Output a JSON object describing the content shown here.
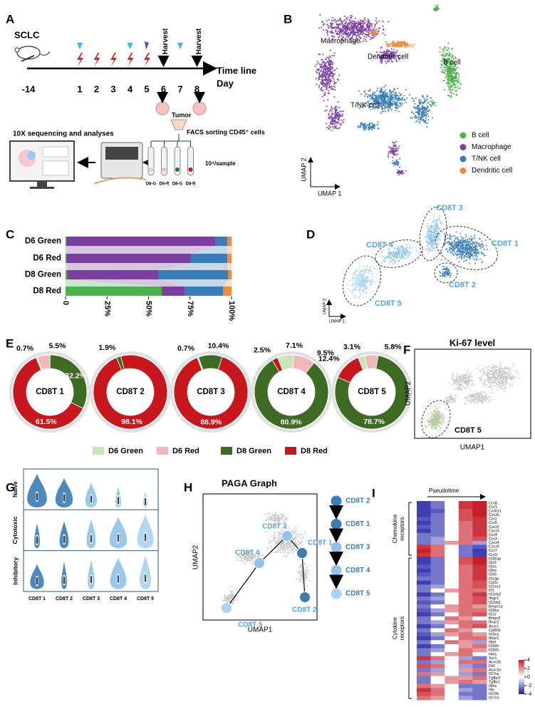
{
  "panel_labels": [
    "A",
    "B",
    "C",
    "D",
    "E",
    "F",
    "G",
    "H",
    "I"
  ],
  "a": {
    "model": "SCLC",
    "days": [
      "-14",
      "1",
      "2",
      "3",
      "4",
      "5",
      "6",
      "7",
      "8"
    ],
    "harvest": "Harvest",
    "timeline": "Time line",
    "day": "Day",
    "tumor": "Tumor",
    "facs": "FACS sorting CD45⁺ cells",
    "sequencing": "10X sequencing and analyses",
    "per_sample": "10⁴/sample",
    "samples": [
      "D6-G",
      "D6-R",
      "D8-G",
      "D8-R"
    ]
  },
  "b": {
    "umap_x": "UMAP 1",
    "umap_y": "UMAP 2",
    "clusters": [
      {
        "name": "B cell",
        "color": "#4caf50"
      },
      {
        "name": "Macrophage",
        "color": "#7b3fa0"
      },
      {
        "name": "T/NK cell",
        "color": "#3a7db5"
      },
      {
        "name": "Dendritic cell",
        "color": "#f08a3c"
      }
    ]
  },
  "c": {
    "type": "bar",
    "orientation": "horizontal",
    "stacked": true,
    "categories": [
      "D6 Green",
      "D6 Red",
      "D8 Green",
      "D8 Red"
    ],
    "series": [
      {
        "name": "B cell",
        "color": "#4caf50",
        "values": [
          0.5,
          0.5,
          1,
          58
        ]
      },
      {
        "name": "Macrophage",
        "color": "#7b3fa0",
        "values": [
          90,
          75,
          55,
          14
        ]
      },
      {
        "name": "T/NK cell",
        "color": "#3a7db5",
        "values": [
          7,
          22,
          42,
          23
        ]
      },
      {
        "name": "Dendritic cell",
        "color": "#f08a3c",
        "values": [
          2.5,
          2.5,
          2,
          5
        ]
      }
    ],
    "xlim": [
      0,
      100
    ],
    "xticks": [
      0,
      {
        "value": 25,
        "label": "25%"
      },
      {
        "value": 50,
        "label": "50%"
      },
      {
        "value": 75,
        "label": "75%"
      },
      {
        "value": 100,
        "label": "100%"
      }
    ]
  },
  "d": {
    "umap_x": "UMAP 1",
    "umap_y": "UMAP 2",
    "clusters": [
      {
        "name": "CD8T 1",
        "color": "#3a7db5"
      },
      {
        "name": "CD8T 2",
        "color": "#3a7db5"
      },
      {
        "name": "CD8T 3",
        "color": "#8fc3ec"
      },
      {
        "name": "CD8T 4",
        "color": "#8fc3ec"
      },
      {
        "name": "CD8T 5",
        "color": "#a9d3f2"
      }
    ]
  },
  "e": {
    "type": "donut",
    "series": [
      {
        "name": "D6 Green",
        "color": "#c7e6b5"
      },
      {
        "name": "D6 Red",
        "color": "#f4b6bd"
      },
      {
        "name": "D8 Green",
        "color": "#3d6b24"
      },
      {
        "name": "D8 Red",
        "color": "#c8161d"
      }
    ],
    "charts": [
      {
        "label": "CD8T 1",
        "values": [
          0.7,
          5.5,
          32.2,
          61.5
        ],
        "value_labels": [
          "0.7%",
          "5.5%",
          "32.2%",
          "61.5%"
        ]
      },
      {
        "label": "CD8T 2",
        "values": [
          null,
          null,
          1.9,
          98.1
        ],
        "value_labels": [
          null,
          null,
          "1.9%",
          "98.1%"
        ]
      },
      {
        "label": "CD8T 3",
        "values": [
          0.7,
          null,
          10.4,
          88.9
        ],
        "value_labels": [
          "0.7%",
          null,
          "10.4%",
          "88.9%"
        ]
      },
      {
        "label": "CD8T 4",
        "values": [
          7.1,
          9.5,
          80.9,
          2.5
        ],
        "value_labels": [
          "7.1%",
          "9.5%",
          "80.9%",
          "2.5%"
        ]
      },
      {
        "label": "CD8T 5",
        "values": [
          3.1,
          5.8,
          78.7,
          12.4
        ],
        "value_labels": [
          "3.1%",
          "5.8%",
          "78.7%",
          "12.4%"
        ]
      }
    ]
  },
  "f": {
    "title": "Ki-67 level",
    "umap_x": "UMAP1",
    "umap_y": "UMAP2",
    "cluster": "CD8T 5"
  },
  "g": {
    "rows": [
      "Naive",
      "Cytotoxic",
      "Inhibitory"
    ],
    "categories": [
      "CD8T 1",
      "CD8T 2",
      "CD8T 3",
      "CD8T 4",
      "CD8T 5"
    ]
  },
  "h": {
    "title": "PAGA Graph",
    "umap_x": "UMAP1",
    "umap_y": "UMAP2",
    "nodes": [
      "CD8T 1",
      "CD8T 2",
      "CD8T 3",
      "CD8T 4",
      "CD8T 5"
    ],
    "order": [
      "CD8T 2",
      "CD8T 1",
      "CD8T 3",
      "CD8T 4",
      "CD8T 5"
    ]
  },
  "i": {
    "type": "heatmap",
    "axis": "Pseudotime",
    "groups": [
      [
        "Chemokine",
        "receptors"
      ],
      [
        "Cytokine",
        "receptors"
      ]
    ],
    "genes": [
      "Ccr8",
      "Ccr1",
      "Cx3cr1",
      "Cxcr6",
      "Ccr2",
      "Ccr5",
      "Cxcr2",
      "Cxcr3",
      "Ccr4",
      "Ccr3",
      "Cxcr4",
      "Cxcr5",
      "Ccr7",
      "Ccr9",
      "Il18rap",
      "Il1r2",
      "Il2ra",
      "Il3ra",
      "Il2rb",
      "Il1rap",
      "Csf1r",
      "Il11ra1",
      "Il7r",
      "Il12rb2",
      "Ifngr1",
      "Il12rb1",
      "Bmpr1a",
      "Il10ra",
      "Il21r",
      "Bmpr2",
      "Ifnar2",
      "Acvr1",
      "Csf2rb",
      "Il15ra",
      "Ifnar1",
      "Il6st",
      "Il10rb",
      "Il20rb",
      "Il4ra",
      "Xcr1",
      "Acvr2b",
      "Flt1",
      "Acvr1b",
      "Il27ra",
      "Tgfbr2",
      "Tgfbr1",
      "Il6ra",
      "Il9r",
      "Il17rb",
      "Il17ra"
    ],
    "matrix": [
      [
        -2,
        -1,
        0,
        2,
        3
      ],
      [
        -2,
        -1,
        0,
        2,
        3
      ],
      [
        -2,
        -1.5,
        0,
        1.5,
        2.5
      ],
      [
        -2,
        -1,
        0,
        1.5,
        2.5
      ],
      [
        -1.5,
        -1,
        0,
        1.5,
        2
      ],
      [
        -2,
        -1,
        0,
        1,
        2
      ],
      [
        -1.5,
        -1,
        0,
        1,
        2
      ],
      [
        -2,
        -1,
        0,
        1,
        2
      ],
      [
        -1,
        -1,
        0,
        1,
        2
      ],
      [
        -1,
        -0.5,
        0,
        1,
        1.5
      ],
      [
        -1,
        -0.5,
        0.5,
        1,
        -0.5
      ],
      [
        2,
        1,
        0,
        -1,
        -1.5
      ],
      [
        2.5,
        1,
        0,
        -1,
        -2
      ],
      [
        2,
        1,
        0,
        -1,
        -2
      ],
      [
        -2,
        -1,
        0,
        1.5,
        2.5
      ],
      [
        -2,
        -1,
        0,
        1.5,
        2.5
      ],
      [
        -1.5,
        -1,
        0,
        1,
        2
      ],
      [
        -2,
        -1,
        0,
        1,
        2
      ],
      [
        -1.5,
        -1,
        0,
        1,
        2
      ],
      [
        -1,
        -1,
        0,
        1,
        2
      ],
      [
        -2,
        -1,
        0,
        1,
        1.5
      ],
      [
        -1,
        -0.5,
        0,
        1,
        1.5
      ],
      [
        -1,
        0,
        0.5,
        1,
        1
      ],
      [
        -2,
        -1,
        0,
        1,
        2
      ],
      [
        -1,
        -0.5,
        0,
        1,
        1.5
      ],
      [
        -1.5,
        -1,
        0,
        1,
        1.5
      ],
      [
        -1,
        0,
        0.5,
        1,
        0.5
      ],
      [
        -1.5,
        -0.5,
        0.5,
        1,
        1
      ],
      [
        -2,
        -1,
        0,
        1,
        1.5
      ],
      [
        -1,
        0,
        1,
        0.5,
        0
      ],
      [
        -1,
        -0.5,
        0.5,
        1,
        1
      ],
      [
        -2,
        -1,
        0,
        1,
        1.5
      ],
      [
        -1,
        0,
        1,
        0.5,
        0
      ],
      [
        -1.5,
        -0.5,
        0.5,
        1,
        0.5
      ],
      [
        -2,
        -1,
        0,
        1,
        1
      ],
      [
        -1,
        0,
        1,
        0.5,
        -0.5
      ],
      [
        -2,
        -1,
        0,
        0.5,
        1
      ],
      [
        -1,
        -0.5,
        0,
        1,
        0.5
      ],
      [
        -1,
        0,
        0.5,
        1,
        0
      ],
      [
        2,
        1,
        0,
        -0.5,
        -1
      ],
      [
        -1,
        -0.5,
        0,
        1,
        1
      ],
      [
        1.5,
        1,
        0,
        -0.5,
        -1
      ],
      [
        -1,
        -0.5,
        0,
        0.5,
        1
      ],
      [
        1,
        0.5,
        0,
        -0.5,
        -1
      ],
      [
        -1,
        0,
        0.5,
        0.5,
        1
      ],
      [
        -1,
        0,
        0.5,
        1,
        0.5
      ],
      [
        1,
        0.5,
        0,
        -1,
        -1
      ],
      [
        2,
        1,
        0,
        -0.5,
        -1
      ],
      [
        1.5,
        1,
        0,
        -1,
        -1
      ],
      [
        1,
        0.5,
        0,
        -0.5,
        -1
      ]
    ],
    "lim": [
      -4,
      4
    ],
    "ticks": [
      4,
      2,
      0,
      -2,
      -4
    ]
  }
}
